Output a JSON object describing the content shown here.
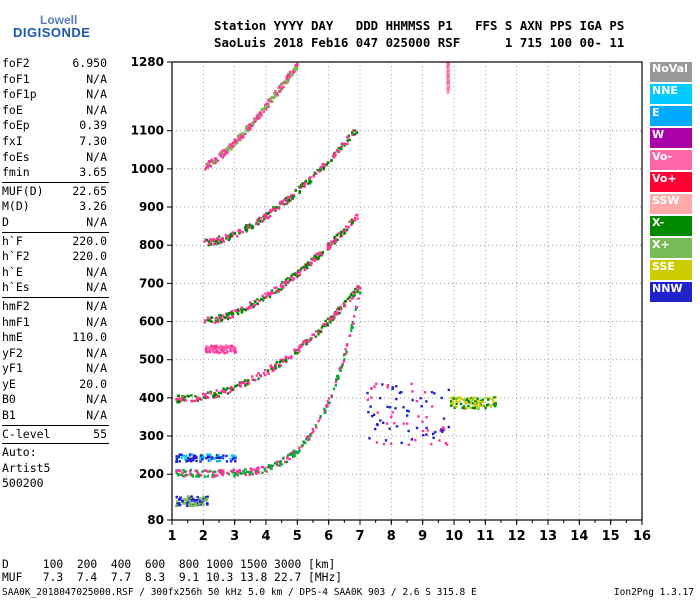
{
  "logo": {
    "line1": "Lowell",
    "line2": "DIGISONDE"
  },
  "header": {
    "line1": "Station YYYY DAY   DDD HHMMSS P1   FFS S AXN PPS IGA PS",
    "line2": "SaoLuis 2018 Feb16 047 025000 RSF      1 715 100 00- 11"
  },
  "params": [
    {
      "key": "foF2",
      "value": "6.950"
    },
    {
      "key": "foF1",
      "value": "N/A"
    },
    {
      "key": "foF1p",
      "value": "N/A"
    },
    {
      "key": "foE",
      "value": "N/A"
    },
    {
      "key": "foEp",
      "value": "0.39"
    },
    {
      "key": "fxI",
      "value": "7.30"
    },
    {
      "key": "foEs",
      "value": "N/A"
    },
    {
      "key": "fmin",
      "value": "3.65"
    },
    {
      "key": "MUF(D)",
      "value": "22.65"
    },
    {
      "key": "M(D)",
      "value": "3.26"
    },
    {
      "key": "D",
      "value": "N/A"
    },
    {
      "key": "h`F",
      "value": "220.0"
    },
    {
      "key": "h`F2",
      "value": "220.0"
    },
    {
      "key": "h`E",
      "value": "N/A"
    },
    {
      "key": "h`Es",
      "value": "N/A"
    },
    {
      "key": "hmF2",
      "value": "N/A"
    },
    {
      "key": "hmF1",
      "value": "N/A"
    },
    {
      "key": "hmE",
      "value": "110.0"
    },
    {
      "key": "yF2",
      "value": "N/A"
    },
    {
      "key": "yF1",
      "value": "N/A"
    },
    {
      "key": "yE",
      "value": "20.0"
    },
    {
      "key": "B0",
      "value": "N/A"
    },
    {
      "key": "B1",
      "value": "N/A"
    },
    {
      "key": "C-level",
      "value": "55"
    }
  ],
  "autoscale": {
    "line1": "Auto:",
    "line2": "Artist5",
    "line3": "500200"
  },
  "legend": [
    {
      "label": "NoVal",
      "color": "#999999"
    },
    {
      "label": "NNE",
      "color": "#00ccff"
    },
    {
      "label": "E",
      "color": "#00aaff"
    },
    {
      "label": "W",
      "color": "#aa00aa"
    },
    {
      "label": "Vo-",
      "color": "#ff66aa"
    },
    {
      "label": "Vo+",
      "color": "#ff0033"
    },
    {
      "label": "SSW",
      "color": "#ffaaaa"
    },
    {
      "label": "X-",
      "color": "#008800"
    },
    {
      "label": "X+",
      "color": "#77bb55"
    },
    {
      "label": "SSE",
      "color": "#cccc00"
    },
    {
      "label": "NNW",
      "color": "#2222cc"
    }
  ],
  "dmuf": {
    "d_line": "D     100  200  400  600  800 1000 1500 3000 [km]",
    "muf_line": "MUF   7.3  7.4  7.7  8.3  9.1 10.3 13.8 22.7 [MHz]"
  },
  "footer": "SAA0K_2018047025000.RSF / 300fx256h 50 kHz 5.0 km / DPS-4 SAA0K 903 / 2.6 S 315.8 E",
  "version": "Ion2Png 1.3.17",
  "chart_data": {
    "type": "scatter",
    "x_ticks": [
      "1",
      "2",
      "3",
      "4",
      "5",
      "6",
      "7",
      "8",
      "9",
      "10",
      "11",
      "12",
      "13",
      "14",
      "15",
      "16"
    ],
    "y_ticks": [
      "80",
      "200",
      "300",
      "400",
      "500",
      "600",
      "700",
      "800",
      "900",
      "1000",
      "1100",
      "1280"
    ],
    "xlim": [
      1,
      16
    ],
    "ylim": [
      80,
      1280
    ],
    "x_unit": "MHz",
    "y_unit": "km",
    "traces": [
      {
        "name": "1F",
        "mode": "curve",
        "f0": 1.1,
        "fc": 7.0,
        "h0": 205,
        "hc": 700,
        "p": 5,
        "color": "#00aa33",
        "alt": "#ff3399"
      },
      {
        "name": "2F",
        "mode": "curve",
        "f0": 1.1,
        "fc": 7.0,
        "h0": 400,
        "hc": 700,
        "p": 2,
        "color": "#ff3399",
        "alt": "#008800"
      },
      {
        "name": "3F",
        "mode": "curve",
        "f0": 2.0,
        "fc": 6.9,
        "h0": 605,
        "hc": 880,
        "p": 1.6,
        "color": "#ff3399",
        "alt": "#008800"
      },
      {
        "name": "4F",
        "mode": "curve",
        "f0": 2.0,
        "fc": 6.9,
        "h0": 810,
        "hc": 1110,
        "p": 1.6,
        "color": "#ff3399",
        "alt": "#008800"
      },
      {
        "name": "5F",
        "mode": "curve",
        "f0": 2.0,
        "fc": 5.0,
        "h0": 1010,
        "hc": 1280,
        "p": 1.3,
        "color": "#ff3399",
        "alt": "#77bb55"
      },
      {
        "name": "sp",
        "mode": "blob",
        "x": [
          7.2,
          9.8
        ],
        "y": [
          280,
          440
        ],
        "color": "#2222cc",
        "alt": "#ff3399"
      },
      {
        "name": "x1",
        "mode": "blob",
        "x": [
          9.8,
          11.3
        ],
        "y": [
          375,
          405
        ],
        "color": "#cccc00",
        "alt": "#008800"
      },
      {
        "name": "x2",
        "mode": "blob",
        "x": [
          1.1,
          2.1
        ],
        "y": [
          120,
          145
        ],
        "color": "#77bb55",
        "alt": "#2222cc"
      },
      {
        "name": "x3",
        "mode": "blob",
        "x": [
          1.1,
          3.0
        ],
        "y": [
          235,
          255
        ],
        "color": "#2222cc",
        "alt": "#00ccff"
      },
      {
        "name": "x4",
        "mode": "blob",
        "x": [
          9.75,
          9.8
        ],
        "y": [
          1200,
          1280
        ],
        "color": "#ffaaaa",
        "alt": "#ff66aa"
      },
      {
        "name": "x5",
        "mode": "blob",
        "x": [
          2.0,
          3.0
        ],
        "y": [
          520,
          540
        ],
        "color": "#ff3399",
        "alt": "#ff66aa"
      }
    ]
  }
}
